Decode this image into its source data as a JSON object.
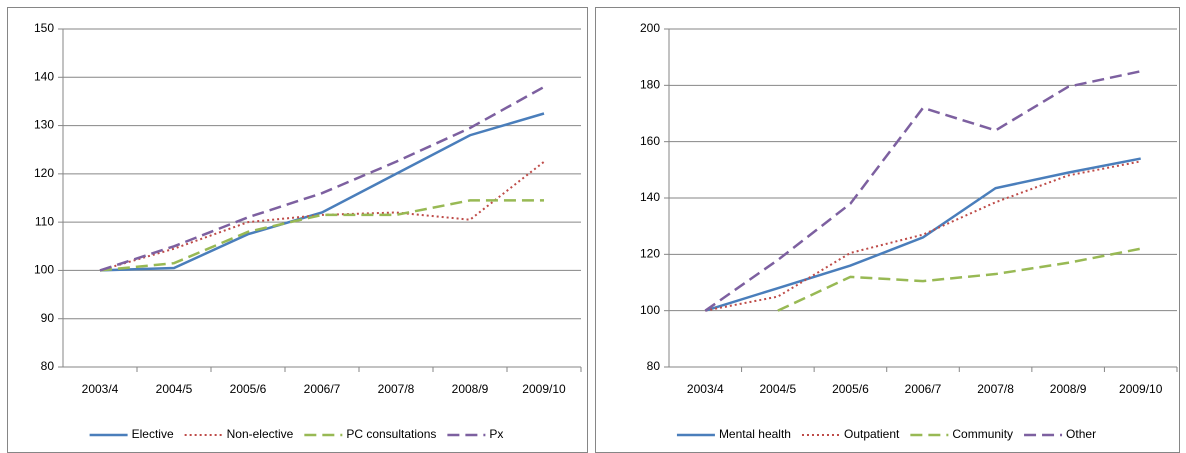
{
  "chart_data": [
    {
      "type": "line",
      "categories": [
        "2003/4",
        "2004/5",
        "2005/6",
        "2006/7",
        "2007/8",
        "2008/9",
        "2009/10"
      ],
      "ylim": [
        80,
        150
      ],
      "yticks": [
        80,
        90,
        100,
        110,
        120,
        130,
        140,
        150
      ],
      "grid": true,
      "legend": "bottom",
      "series": [
        {
          "name": "Elective",
          "color": "#4a7ebb",
          "style": "solid",
          "values": [
            100,
            100.5,
            107.5,
            112,
            120,
            128,
            132.5
          ]
        },
        {
          "name": "Non-elective",
          "color": "#be4b48",
          "style": "dotted",
          "values": [
            100,
            104.5,
            110,
            111.5,
            112,
            110.5,
            122.5
          ]
        },
        {
          "name": "PC consultations",
          "color": "#98b954",
          "style": "dashed",
          "values": [
            100,
            101.5,
            108,
            111.5,
            111.5,
            114.5,
            114.5
          ]
        },
        {
          "name": "Px",
          "color": "#7d60a0",
          "style": "dashed",
          "values": [
            100,
            105,
            111,
            116,
            122.5,
            129.5,
            138
          ]
        }
      ]
    },
    {
      "type": "line",
      "categories": [
        "2003/4",
        "2004/5",
        "2005/6",
        "2006/7",
        "2007/8",
        "2008/9",
        "2009/10"
      ],
      "ylim": [
        80,
        200
      ],
      "yticks": [
        80,
        100,
        120,
        140,
        160,
        180,
        200
      ],
      "grid": true,
      "legend": "bottom",
      "series": [
        {
          "name": "Mental health",
          "color": "#4a7ebb",
          "style": "solid",
          "values": [
            100,
            108,
            116,
            126,
            143.5,
            149,
            154
          ]
        },
        {
          "name": "Outpatient",
          "color": "#be4b48",
          "style": "dotted",
          "values": [
            100,
            105,
            120.5,
            127,
            138.5,
            148,
            153
          ]
        },
        {
          "name": "Community",
          "color": "#98b954",
          "style": "dashed",
          "values": [
            null,
            100,
            112,
            110.5,
            113,
            117,
            122
          ]
        },
        {
          "name": "Other",
          "color": "#7d60a0",
          "style": "dashed",
          "values": [
            100,
            118,
            138,
            172,
            164,
            179.5,
            185
          ]
        }
      ]
    }
  ]
}
